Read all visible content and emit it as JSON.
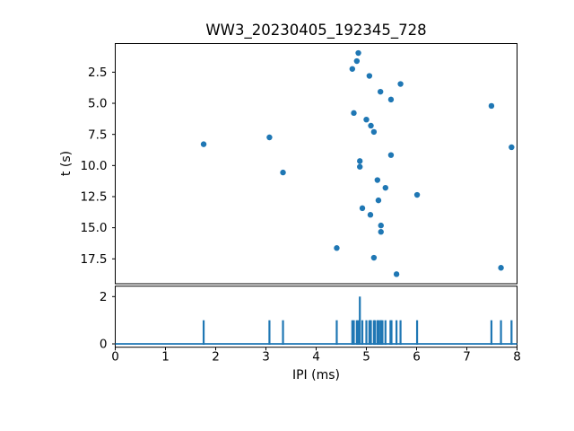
{
  "figure": {
    "title": "WW3_20230405_192345_728",
    "background_color": "#ffffff",
    "accent_color": "#1f77b4"
  },
  "chart_data": [
    {
      "type": "scatter",
      "title": "WW3_20230405_192345_728",
      "xlabel": "",
      "ylabel": "t (s)",
      "xlim": [
        0,
        8
      ],
      "ylim": [
        19.5,
        0.2
      ],
      "y_axis_inverted": true,
      "grid": false,
      "legend": null,
      "marker_color": "#1f77b4",
      "yticks": {
        "values": [
          2.5,
          5.0,
          7.5,
          10.0,
          12.5,
          15.0,
          17.5
        ],
        "labels": [
          "2.5",
          "5.0",
          "7.5",
          "10.0",
          "12.5",
          "15.0",
          "17.5"
        ]
      },
      "points_format": "[IPI_ms, t_s]",
      "points": [
        [
          4.84,
          0.96
        ],
        [
          4.81,
          1.61
        ],
        [
          4.72,
          2.24
        ],
        [
          5.06,
          2.8
        ],
        [
          5.68,
          3.45
        ],
        [
          5.28,
          4.07
        ],
        [
          5.49,
          4.7
        ],
        [
          7.49,
          5.21
        ],
        [
          4.75,
          5.78
        ],
        [
          5.0,
          6.31
        ],
        [
          5.09,
          6.8
        ],
        [
          5.15,
          7.3
        ],
        [
          3.07,
          7.74
        ],
        [
          1.76,
          8.29
        ],
        [
          7.89,
          8.53
        ],
        [
          5.49,
          9.16
        ],
        [
          4.87,
          9.64
        ],
        [
          4.87,
          10.1
        ],
        [
          3.34,
          10.56
        ],
        [
          5.22,
          11.17
        ],
        [
          5.38,
          11.79
        ],
        [
          6.01,
          12.36
        ],
        [
          5.24,
          12.8
        ],
        [
          4.92,
          13.43
        ],
        [
          5.08,
          13.96
        ],
        [
          5.29,
          14.82
        ],
        [
          5.29,
          15.33
        ],
        [
          4.41,
          16.63
        ],
        [
          5.15,
          17.41
        ],
        [
          7.68,
          18.22
        ],
        [
          5.6,
          18.73
        ]
      ]
    },
    {
      "type": "bar",
      "subtype": "step-histogram",
      "xlabel": "IPI (ms)",
      "ylabel": "",
      "xlim": [
        0,
        8
      ],
      "ylim": [
        -0.14,
        2.44
      ],
      "grid": false,
      "bar_color": "#1f77b4",
      "xticks": {
        "values": [
          0,
          1,
          2,
          3,
          4,
          5,
          6,
          7,
          8
        ],
        "labels": [
          "0",
          "1",
          "2",
          "3",
          "4",
          "5",
          "6",
          "7",
          "8"
        ]
      },
      "yticks": {
        "values": [
          0,
          2
        ],
        "labels": [
          "0",
          "2"
        ]
      },
      "bars_format": "[IPI_ms, count]",
      "bars": [
        [
          1.76,
          1
        ],
        [
          3.07,
          1
        ],
        [
          3.34,
          1
        ],
        [
          4.41,
          1
        ],
        [
          4.72,
          1
        ],
        [
          4.75,
          1
        ],
        [
          4.81,
          1
        ],
        [
          4.84,
          1
        ],
        [
          4.87,
          2
        ],
        [
          4.92,
          1
        ],
        [
          5.0,
          1
        ],
        [
          5.06,
          1
        ],
        [
          5.08,
          1
        ],
        [
          5.09,
          1
        ],
        [
          5.15,
          1
        ],
        [
          5.17,
          1
        ],
        [
          5.22,
          1
        ],
        [
          5.24,
          1
        ],
        [
          5.28,
          1
        ],
        [
          5.29,
          1
        ],
        [
          5.32,
          1
        ],
        [
          5.38,
          1
        ],
        [
          5.48,
          1
        ],
        [
          5.5,
          1
        ],
        [
          5.6,
          1
        ],
        [
          5.68,
          1
        ],
        [
          6.01,
          1
        ],
        [
          7.49,
          1
        ],
        [
          7.68,
          1
        ],
        [
          7.89,
          1
        ]
      ]
    }
  ]
}
